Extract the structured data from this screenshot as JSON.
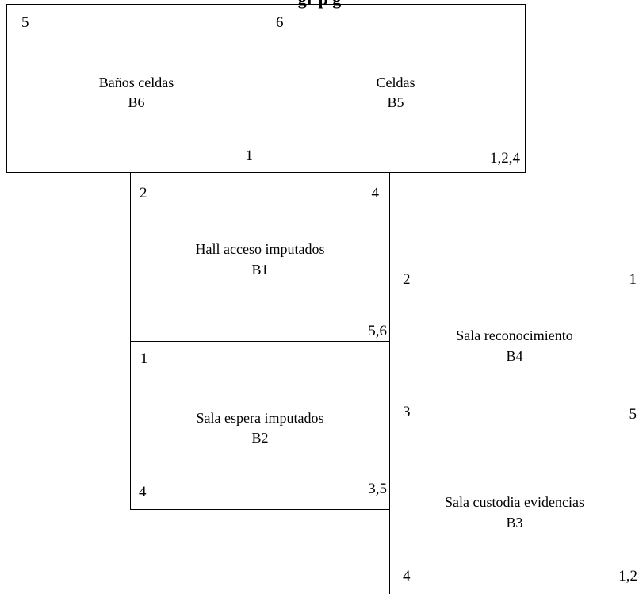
{
  "header": {
    "title": "gr                                          p             g"
  },
  "rooms": {
    "b6": {
      "name": "Baños celdas",
      "code": "B6",
      "marks": {
        "top_left": "5",
        "bottom_right": "1"
      }
    },
    "b5": {
      "name": "Celdas",
      "code": "B5",
      "marks": {
        "top_left": "6",
        "bottom_right": "1,2,4"
      }
    },
    "b1": {
      "name": "Hall acceso imputados",
      "code": "B1",
      "marks": {
        "top_left": "2",
        "top_right": "4",
        "bottom_right": "5,6"
      }
    },
    "b2": {
      "name": "Sala espera imputados",
      "code": "B2",
      "marks": {
        "top_left": "1",
        "bottom_left": "4",
        "bottom_right": "3,5"
      }
    },
    "b4": {
      "name": "Sala reconocimiento",
      "code": "B4",
      "marks": {
        "top_left": "2",
        "top_right": "1",
        "bottom_left": "3",
        "bottom_right": "5"
      }
    },
    "b3": {
      "name": "Sala custodia evidencias",
      "code": "B3",
      "marks": {
        "bottom_left": "4",
        "bottom_right": "1,2"
      }
    }
  }
}
